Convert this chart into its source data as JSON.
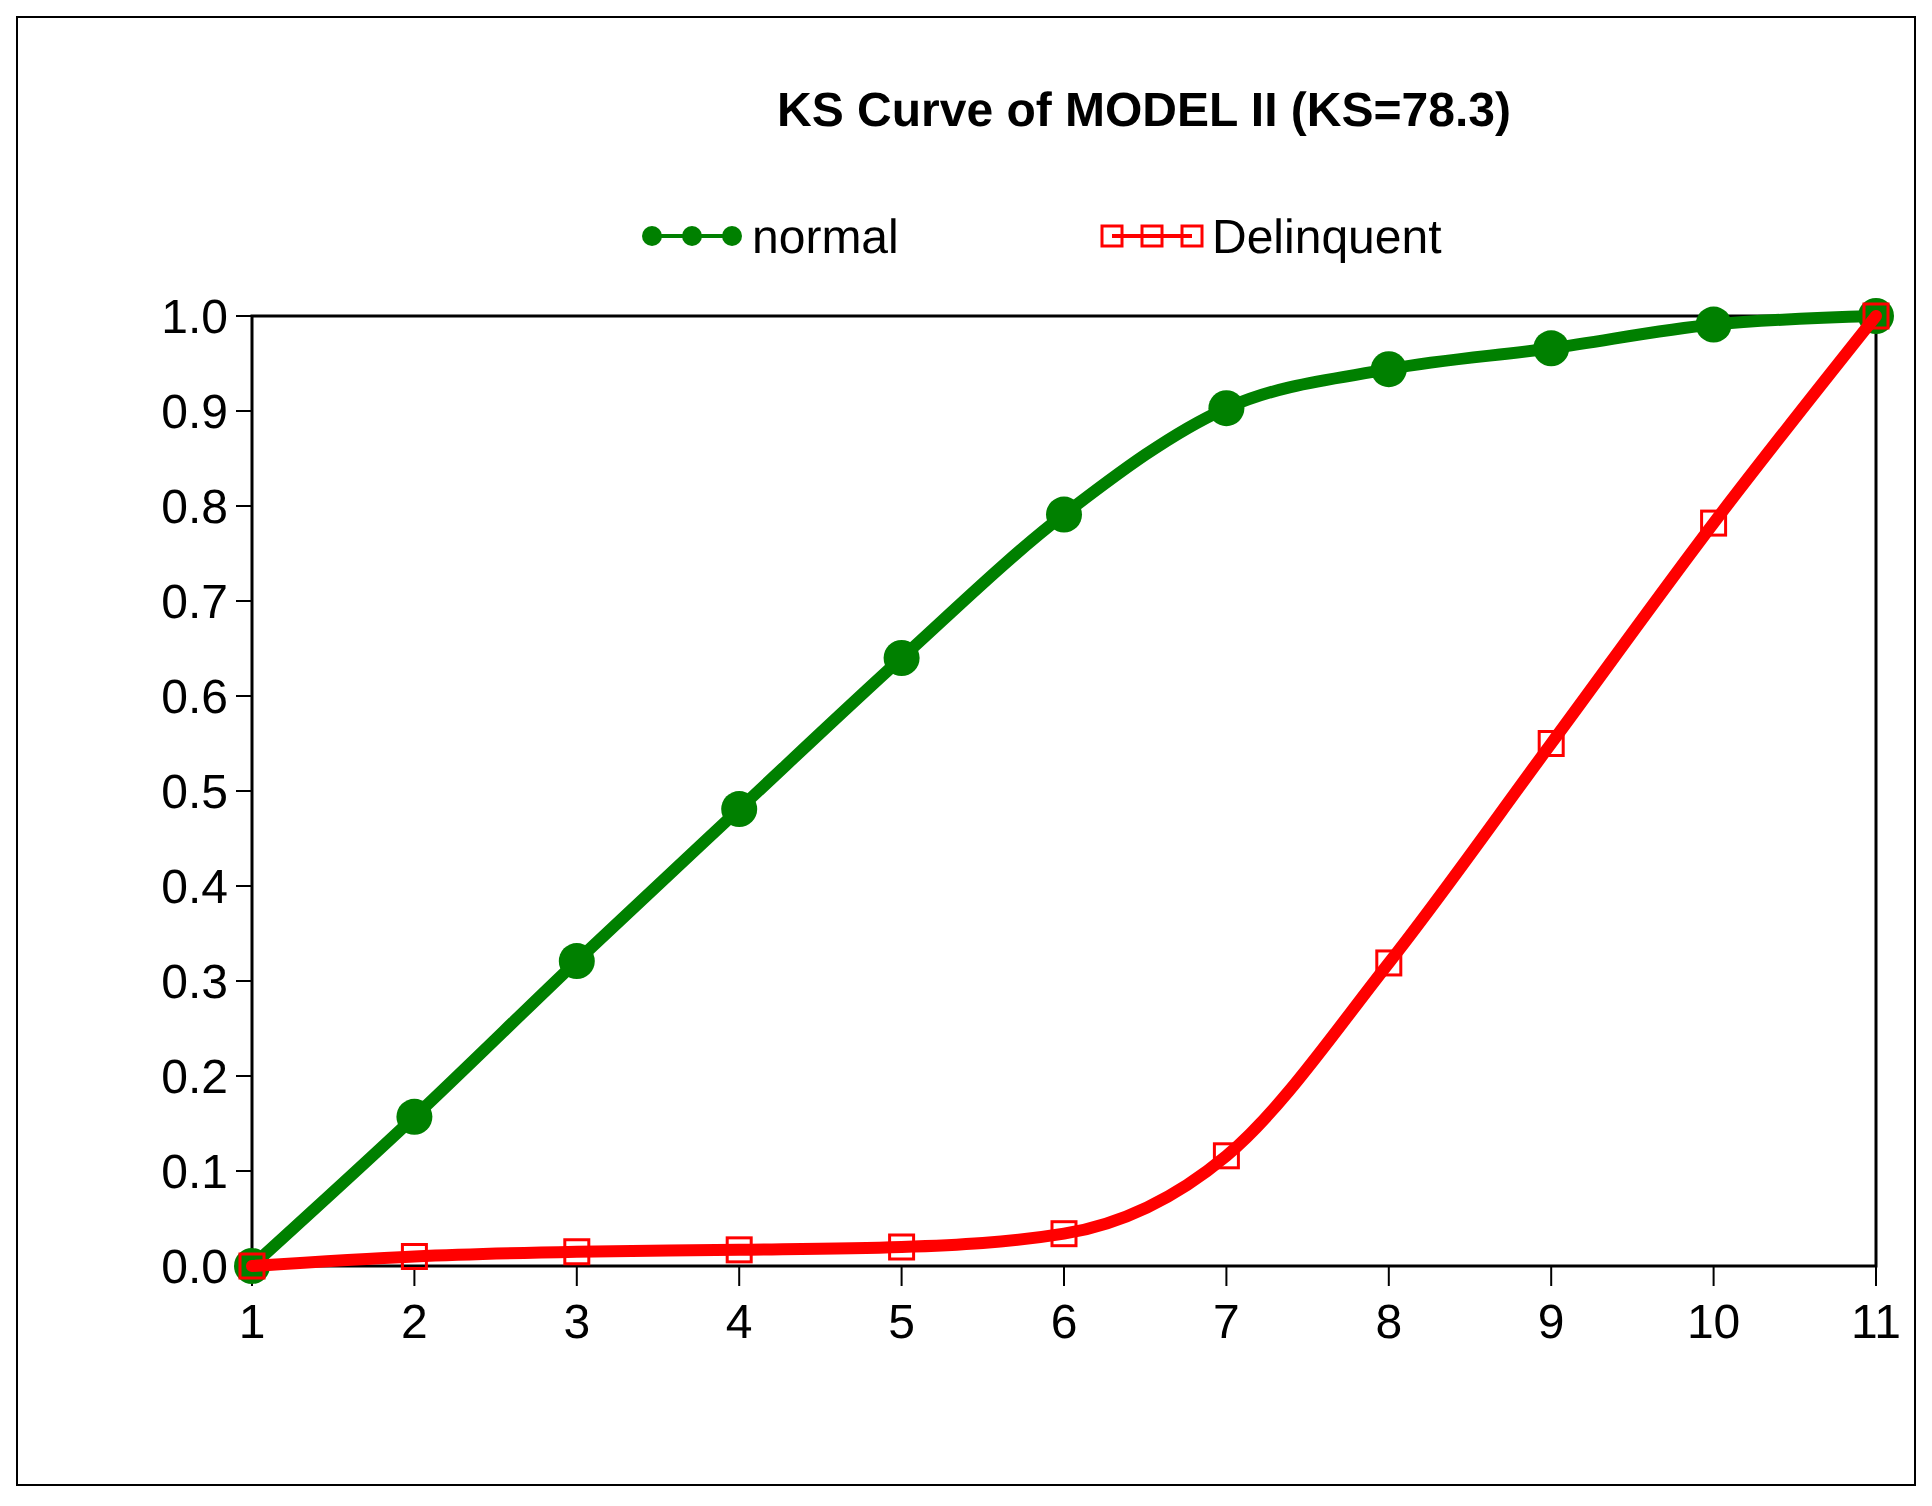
{
  "chart_data": {
    "type": "line",
    "title": "KS Curve of MODEL II (KS=78.3)",
    "x": [
      1,
      2,
      3,
      4,
      5,
      6,
      7,
      8,
      9,
      10,
      11
    ],
    "series": [
      {
        "name": "normal",
        "color": "#008000",
        "marker": "circle",
        "values": [
          0,
          0.157,
          0.321,
          0.481,
          0.64,
          0.791,
          0.903,
          0.944,
          0.966,
          0.991,
          1.0
        ]
      },
      {
        "name": "Delinquent",
        "color": "#ff0000",
        "marker": "square",
        "values": [
          0,
          0.01,
          0.015,
          0.017,
          0.02,
          0.034,
          0.116,
          0.319,
          0.55,
          0.782,
          1.0
        ]
      }
    ],
    "xlim": [
      1,
      11
    ],
    "xticks": [
      1,
      2,
      3,
      4,
      5,
      6,
      7,
      8,
      9,
      10,
      11
    ],
    "ylim": [
      0,
      1
    ],
    "yticks": [
      {
        "value": 0,
        "label": "0.0"
      },
      0.1,
      0.2,
      0.3,
      0.4,
      0.5,
      0.6,
      0.7,
      0.8,
      0.9,
      {
        "value": 1,
        "label": "1.0"
      }
    ],
    "grid": false,
    "legend": "top",
    "line_style": "solid"
  }
}
